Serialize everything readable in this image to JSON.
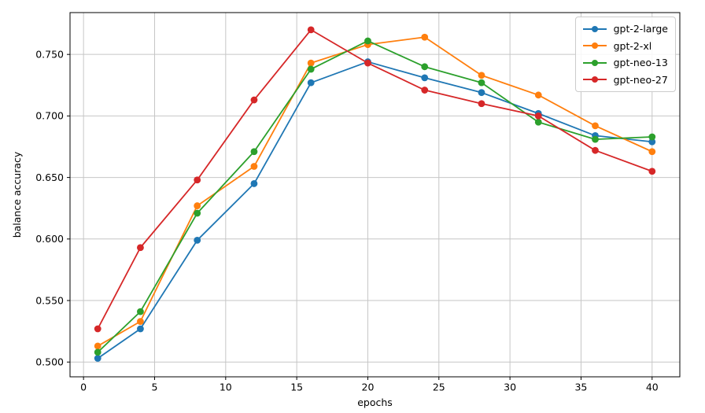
{
  "chart_data": {
    "type": "line",
    "title": "",
    "xlabel": "epochs",
    "ylabel": "balance accuracy",
    "x": [
      1,
      4,
      8,
      12,
      16,
      20,
      24,
      28,
      32,
      36,
      40
    ],
    "series": [
      {
        "name": "gpt-2-large",
        "color": "#1f77b4",
        "values": [
          0.503,
          0.527,
          0.599,
          0.645,
          0.727,
          0.744,
          0.731,
          0.719,
          0.702,
          0.684,
          0.679
        ]
      },
      {
        "name": "gpt-2-xl",
        "color": "#ff7f0e",
        "values": [
          0.513,
          0.533,
          0.627,
          0.659,
          0.743,
          0.758,
          0.764,
          0.733,
          0.717,
          0.692,
          0.671
        ]
      },
      {
        "name": "gpt-neo-13",
        "color": "#2ca02c",
        "values": [
          0.508,
          0.541,
          0.621,
          0.671,
          0.738,
          0.761,
          0.74,
          0.727,
          0.695,
          0.681,
          0.683
        ]
      },
      {
        "name": "gpt-neo-27",
        "color": "#d62728",
        "values": [
          0.527,
          0.593,
          0.648,
          0.713,
          0.77,
          0.743,
          0.721,
          0.71,
          0.7,
          0.672,
          0.655
        ]
      }
    ],
    "xtick_labels": [
      "0",
      "5",
      "10",
      "15",
      "20",
      "25",
      "30",
      "35",
      "40"
    ],
    "xtick_values": [
      0,
      5,
      10,
      15,
      20,
      25,
      30,
      35,
      40
    ],
    "ytick_labels": [
      "0.500",
      "0.550",
      "0.600",
      "0.650",
      "0.700",
      "0.750"
    ],
    "ytick_values": [
      0.5,
      0.55,
      0.6,
      0.65,
      0.7,
      0.75
    ],
    "xlim": [
      -0.95,
      41.95
    ],
    "ylim": [
      0.488,
      0.784
    ],
    "grid": true,
    "legend_position": "upper right",
    "colors": {
      "grid": "#c6c6c6",
      "axis": "#000000",
      "background": "#ffffff",
      "legend_border": "#cccccc"
    }
  }
}
